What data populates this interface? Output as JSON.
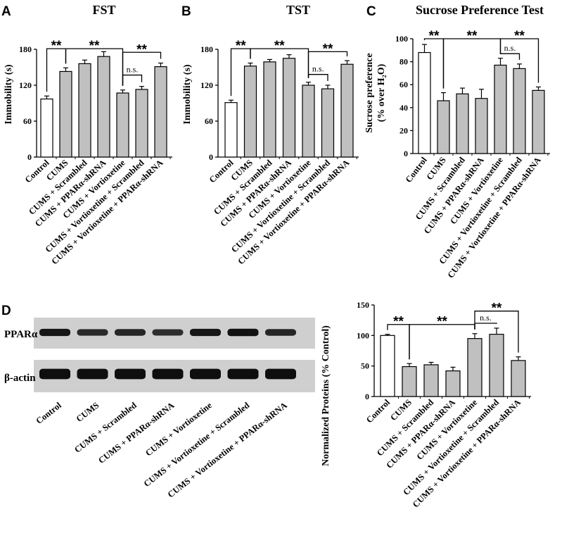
{
  "panel_letters": {
    "a": "A",
    "b": "B",
    "c": "C",
    "d": "D"
  },
  "labels": {
    "ns": "n.s.",
    "sig": "**"
  },
  "chart_data": [
    {
      "type": "bar",
      "panel": "A",
      "title": "FST",
      "ylabel": "Immobility (s)",
      "ylim": [
        0,
        180
      ],
      "yticks": [
        0,
        60,
        120,
        180
      ],
      "categories": [
        "Control",
        "CUMS",
        "CUMS + Scrambled",
        "CUMS + PPARα-shRNA",
        "CUMS + Vortioxetine",
        "CUMS + Vortioxetine + Scrambled",
        "CUMS + Vortioxetine + PPARα-shRNA"
      ],
      "values": [
        97,
        143,
        156,
        168,
        107,
        113,
        151
      ],
      "errors": [
        5,
        6,
        6,
        8,
        5,
        5,
        6
      ],
      "bar_colors": [
        "#ffffff",
        "#c0c0c0",
        "#c0c0c0",
        "#c0c0c0",
        "#c0c0c0",
        "#c0c0c0",
        "#c0c0c0"
      ],
      "comparisons": [
        {
          "from": 0,
          "to": 1,
          "label": "**",
          "level": 181
        },
        {
          "from": 1,
          "to": 4,
          "label": "**",
          "level": 181
        },
        {
          "from": 4,
          "to": 5,
          "label": "n.s.",
          "level": 137
        },
        {
          "from": 4,
          "to": 6,
          "label": "**",
          "level": 175
        }
      ]
    },
    {
      "type": "bar",
      "panel": "B",
      "title": "TST",
      "ylabel": "Immobility (s)",
      "ylim": [
        0,
        180
      ],
      "yticks": [
        0,
        60,
        120,
        180
      ],
      "categories": [
        "Control",
        "CUMS",
        "CUMS + Scrambled",
        "CUMS + PPARα-shRNA",
        "CUMS + Vortioxetine",
        "CUMS + Vortioxetine + Scrambled",
        "CUMS + Vortioxetine + PPARα-shRNA"
      ],
      "values": [
        91,
        152,
        159,
        165,
        120,
        114,
        155
      ],
      "errors": [
        4,
        5,
        4,
        6,
        5,
        6,
        6
      ],
      "bar_colors": [
        "#ffffff",
        "#c0c0c0",
        "#c0c0c0",
        "#c0c0c0",
        "#c0c0c0",
        "#c0c0c0",
        "#c0c0c0"
      ],
      "comparisons": [
        {
          "from": 0,
          "to": 1,
          "label": "**",
          "level": 181
        },
        {
          "from": 1,
          "to": 4,
          "label": "**",
          "level": 181
        },
        {
          "from": 4,
          "to": 5,
          "label": "n.s.",
          "level": 138
        },
        {
          "from": 4,
          "to": 6,
          "label": "**",
          "level": 176
        }
      ]
    },
    {
      "type": "bar",
      "panel": "C",
      "title": "Sucrose Preference Test",
      "ylabel_lines": [
        "Sucrose preference",
        "(% over H₂O)"
      ],
      "ylim": [
        0,
        100
      ],
      "yticks": [
        0,
        20,
        40,
        60,
        80,
        100
      ],
      "categories": [
        "Control",
        "CUMS",
        "CUMS + Scrambled",
        "CUMS + PPARα-shRNA",
        "CUMS + Vortioxetine",
        "CUMS + Vortioxetine + Scrambled",
        "CUMS + Vortioxetine + PPARα-shRNA"
      ],
      "values": [
        88,
        46,
        52,
        48,
        77,
        74,
        55
      ],
      "errors": [
        7,
        7,
        5,
        8,
        6,
        4,
        3
      ],
      "bar_colors": [
        "#ffffff",
        "#c0c0c0",
        "#c0c0c0",
        "#c0c0c0",
        "#c0c0c0",
        "#c0c0c0",
        "#c0c0c0"
      ],
      "comparisons": [
        {
          "from": 0,
          "to": 1,
          "label": "**",
          "level": 100
        },
        {
          "from": 1,
          "to": 4,
          "label": "**",
          "level": 100
        },
        {
          "from": 4,
          "to": 5,
          "label": "n.s.",
          "level": 87
        },
        {
          "from": 4,
          "to": 6,
          "label": "**",
          "level": 100
        }
      ]
    },
    {
      "type": "bar",
      "panel": "D",
      "title": "",
      "ylabel": "Normalized Proteins (% Control)",
      "ylim": [
        0,
        150
      ],
      "yticks": [
        0,
        50,
        100,
        150
      ],
      "categories": [
        "Control",
        "CUMS",
        "CUMS + Scrambled",
        "CUMS + PPARα-shRNA",
        "CUMS + Vortioxetine",
        "CUMS + Vortioxetine + Scrambled",
        "CUMS + Vortioxetine + PPARα-shRNA"
      ],
      "values": [
        100,
        49,
        52,
        42,
        95,
        102,
        59
      ],
      "errors": [
        2,
        5,
        4,
        6,
        8,
        10,
        6
      ],
      "bar_colors": [
        "#ffffff",
        "#c0c0c0",
        "#c0c0c0",
        "#c0c0c0",
        "#c0c0c0",
        "#c0c0c0",
        "#c0c0c0"
      ],
      "comparisons": [
        {
          "from": 0,
          "to": 1,
          "label": "**",
          "level": 118
        },
        {
          "from": 1,
          "to": 4,
          "label": "**",
          "level": 118
        },
        {
          "from": 4,
          "to": 5,
          "label": "n.s.",
          "level": 120
        },
        {
          "from": 4,
          "to": 6,
          "label": "**",
          "level": 140
        }
      ]
    }
  ],
  "blot": {
    "rows": [
      "PPARα",
      "β-actin"
    ],
    "lanes": [
      "Control",
      "CUMS",
      "CUMS + Scrambled",
      "CUMS + PPARα-shRNA",
      "CUMS + Vortioxetine",
      "CUMS + Vortioxetine + Scrambled",
      "CUMS + Vortioxetine + PPARα-shRNA"
    ],
    "band_intensity": {
      "PPARα": [
        0.85,
        0.6,
        0.65,
        0.55,
        0.85,
        0.9,
        0.65
      ],
      "β-actin": [
        0.95,
        0.95,
        0.95,
        0.95,
        0.95,
        0.95,
        0.95
      ]
    }
  }
}
